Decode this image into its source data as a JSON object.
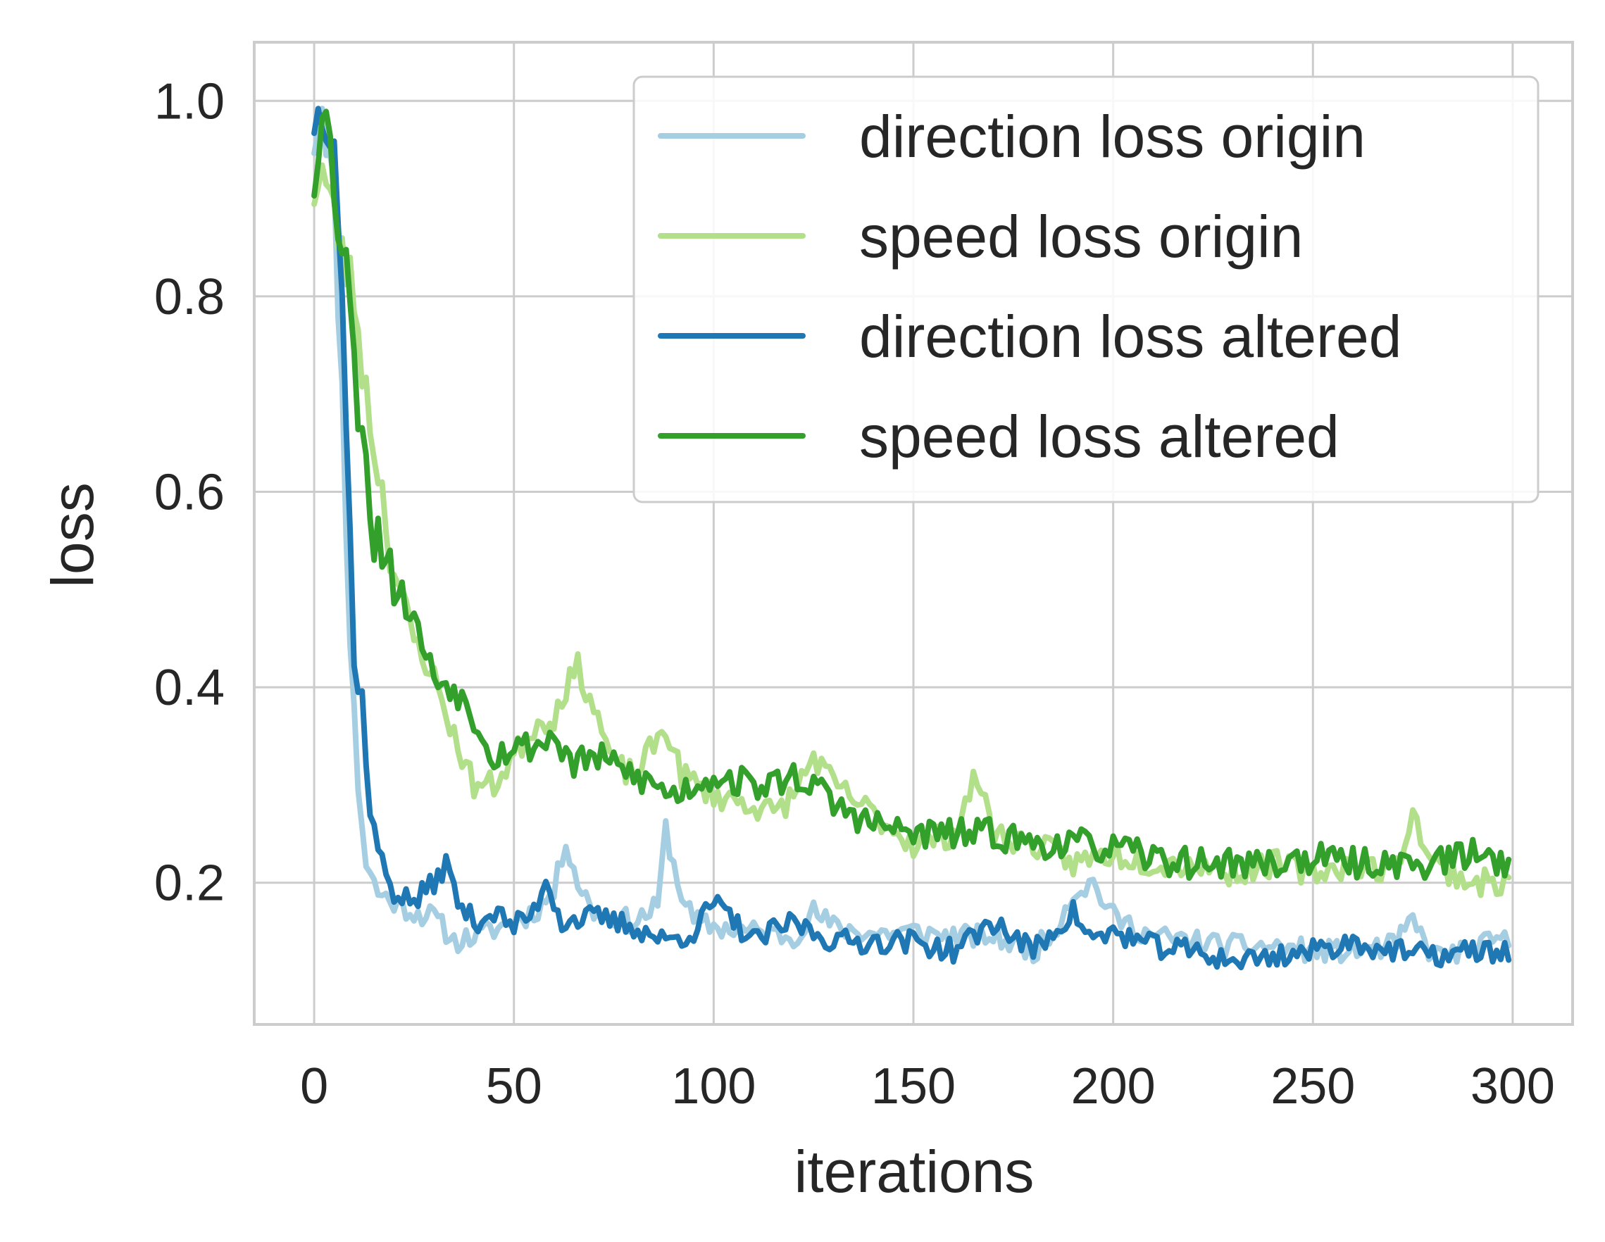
{
  "chart_data": {
    "type": "line",
    "title": "",
    "xlabel": "iterations",
    "ylabel": "loss",
    "xlim": [
      -15,
      315
    ],
    "ylim": [
      0.055,
      1.06
    ],
    "x_ticks": [
      0,
      50,
      100,
      150,
      200,
      250,
      300
    ],
    "x_tick_labels": [
      "0",
      "50",
      "100",
      "150",
      "200",
      "250",
      "300"
    ],
    "y_ticks": [
      0.2,
      0.4,
      0.6,
      0.8,
      1.0
    ],
    "y_tick_labels": [
      "0.2",
      "0.4",
      "0.6",
      "0.8",
      "1.0"
    ],
    "grid": true,
    "legend_position": "top-right",
    "x_step": 1,
    "series": [
      {
        "name": "direction loss origin",
        "color": "#a6cee3",
        "anchors": [
          [
            0,
            0.96
          ],
          [
            2,
            1.0
          ],
          [
            5,
            0.9
          ],
          [
            7,
            0.7
          ],
          [
            9,
            0.45
          ],
          [
            11,
            0.3
          ],
          [
            13,
            0.22
          ],
          [
            16,
            0.19
          ],
          [
            20,
            0.18
          ],
          [
            25,
            0.17
          ],
          [
            30,
            0.165
          ],
          [
            35,
            0.14
          ],
          [
            40,
            0.145
          ],
          [
            50,
            0.16
          ],
          [
            55,
            0.17
          ],
          [
            60,
            0.19
          ],
          [
            63,
            0.245
          ],
          [
            66,
            0.2
          ],
          [
            70,
            0.17
          ],
          [
            80,
            0.16
          ],
          [
            86,
            0.175
          ],
          [
            88,
            0.255
          ],
          [
            91,
            0.2
          ],
          [
            95,
            0.16
          ],
          [
            100,
            0.155
          ],
          [
            110,
            0.15
          ],
          [
            120,
            0.145
          ],
          [
            125,
            0.17
          ],
          [
            130,
            0.155
          ],
          [
            140,
            0.148
          ],
          [
            150,
            0.15
          ],
          [
            160,
            0.145
          ],
          [
            170,
            0.145
          ],
          [
            180,
            0.13
          ],
          [
            185,
            0.15
          ],
          [
            190,
            0.19
          ],
          [
            195,
            0.2
          ],
          [
            200,
            0.165
          ],
          [
            210,
            0.145
          ],
          [
            220,
            0.14
          ],
          [
            230,
            0.135
          ],
          [
            240,
            0.135
          ],
          [
            250,
            0.13
          ],
          [
            260,
            0.13
          ],
          [
            270,
            0.135
          ],
          [
            275,
            0.16
          ],
          [
            280,
            0.125
          ],
          [
            290,
            0.13
          ],
          [
            295,
            0.14
          ],
          [
            299,
            0.14
          ]
        ],
        "noise": 0.012,
        "seed": 11
      },
      {
        "name": "speed loss origin",
        "color": "#b2df8a",
        "anchors": [
          [
            0,
            0.91
          ],
          [
            2,
            0.93
          ],
          [
            5,
            0.88
          ],
          [
            8,
            0.83
          ],
          [
            10,
            0.8
          ],
          [
            13,
            0.7
          ],
          [
            17,
            0.6
          ],
          [
            20,
            0.52
          ],
          [
            25,
            0.45
          ],
          [
            30,
            0.41
          ],
          [
            35,
            0.35
          ],
          [
            40,
            0.3
          ],
          [
            45,
            0.3
          ],
          [
            50,
            0.33
          ],
          [
            55,
            0.36
          ],
          [
            60,
            0.37
          ],
          [
            63,
            0.4
          ],
          [
            66,
            0.42
          ],
          [
            70,
            0.38
          ],
          [
            75,
            0.32
          ],
          [
            80,
            0.31
          ],
          [
            85,
            0.34
          ],
          [
            88,
            0.36
          ],
          [
            92,
            0.31
          ],
          [
            100,
            0.29
          ],
          [
            110,
            0.28
          ],
          [
            115,
            0.27
          ],
          [
            120,
            0.29
          ],
          [
            125,
            0.33
          ],
          [
            130,
            0.3
          ],
          [
            140,
            0.27
          ],
          [
            150,
            0.24
          ],
          [
            160,
            0.25
          ],
          [
            166,
            0.31
          ],
          [
            170,
            0.25
          ],
          [
            180,
            0.24
          ],
          [
            190,
            0.22
          ],
          [
            200,
            0.23
          ],
          [
            210,
            0.22
          ],
          [
            220,
            0.22
          ],
          [
            230,
            0.21
          ],
          [
            240,
            0.22
          ],
          [
            250,
            0.21
          ],
          [
            260,
            0.22
          ],
          [
            270,
            0.21
          ],
          [
            275,
            0.27
          ],
          [
            280,
            0.22
          ],
          [
            290,
            0.2
          ],
          [
            299,
            0.2
          ]
        ],
        "noise": 0.014,
        "seed": 23
      },
      {
        "name": "direction loss altered",
        "color": "#1f78b4",
        "anchors": [
          [
            0,
            0.98
          ],
          [
            2,
            0.99
          ],
          [
            5,
            0.97
          ],
          [
            7,
            0.8
          ],
          [
            9,
            0.55
          ],
          [
            10,
            0.42
          ],
          [
            12,
            0.39
          ],
          [
            14,
            0.27
          ],
          [
            17,
            0.22
          ],
          [
            20,
            0.19
          ],
          [
            25,
            0.18
          ],
          [
            30,
            0.2
          ],
          [
            33,
            0.22
          ],
          [
            36,
            0.18
          ],
          [
            40,
            0.16
          ],
          [
            45,
            0.17
          ],
          [
            50,
            0.155
          ],
          [
            55,
            0.17
          ],
          [
            58,
            0.205
          ],
          [
            62,
            0.16
          ],
          [
            70,
            0.165
          ],
          [
            80,
            0.155
          ],
          [
            88,
            0.14
          ],
          [
            95,
            0.15
          ],
          [
            100,
            0.18
          ],
          [
            105,
            0.16
          ],
          [
            110,
            0.14
          ],
          [
            120,
            0.16
          ],
          [
            125,
            0.15
          ],
          [
            130,
            0.14
          ],
          [
            140,
            0.14
          ],
          [
            150,
            0.14
          ],
          [
            160,
            0.13
          ],
          [
            170,
            0.16
          ],
          [
            180,
            0.13
          ],
          [
            190,
            0.17
          ],
          [
            195,
            0.14
          ],
          [
            200,
            0.15
          ],
          [
            210,
            0.135
          ],
          [
            220,
            0.13
          ],
          [
            230,
            0.12
          ],
          [
            240,
            0.125
          ],
          [
            250,
            0.13
          ],
          [
            260,
            0.14
          ],
          [
            270,
            0.13
          ],
          [
            280,
            0.125
          ],
          [
            290,
            0.13
          ],
          [
            299,
            0.13
          ]
        ],
        "noise": 0.012,
        "seed": 37
      },
      {
        "name": "speed loss altered",
        "color": "#33a02c",
        "anchors": [
          [
            0,
            0.92
          ],
          [
            2,
            1.01
          ],
          [
            4,
            0.95
          ],
          [
            6,
            0.88
          ],
          [
            8,
            0.85
          ],
          [
            10,
            0.72
          ],
          [
            13,
            0.65
          ],
          [
            15,
            0.55
          ],
          [
            18,
            0.55
          ],
          [
            20,
            0.51
          ],
          [
            25,
            0.47
          ],
          [
            30,
            0.41
          ],
          [
            35,
            0.4
          ],
          [
            40,
            0.37
          ],
          [
            45,
            0.33
          ],
          [
            50,
            0.34
          ],
          [
            55,
            0.34
          ],
          [
            60,
            0.35
          ],
          [
            65,
            0.32
          ],
          [
            70,
            0.33
          ],
          [
            80,
            0.31
          ],
          [
            90,
            0.29
          ],
          [
            100,
            0.31
          ],
          [
            110,
            0.3
          ],
          [
            115,
            0.3
          ],
          [
            120,
            0.31
          ],
          [
            125,
            0.3
          ],
          [
            130,
            0.28
          ],
          [
            140,
            0.26
          ],
          [
            150,
            0.25
          ],
          [
            160,
            0.25
          ],
          [
            170,
            0.25
          ],
          [
            180,
            0.24
          ],
          [
            190,
            0.24
          ],
          [
            200,
            0.235
          ],
          [
            210,
            0.225
          ],
          [
            220,
            0.22
          ],
          [
            230,
            0.22
          ],
          [
            240,
            0.22
          ],
          [
            250,
            0.225
          ],
          [
            260,
            0.22
          ],
          [
            270,
            0.22
          ],
          [
            280,
            0.22
          ],
          [
            290,
            0.23
          ],
          [
            299,
            0.22
          ]
        ],
        "noise": 0.016,
        "seed": 53
      }
    ]
  }
}
